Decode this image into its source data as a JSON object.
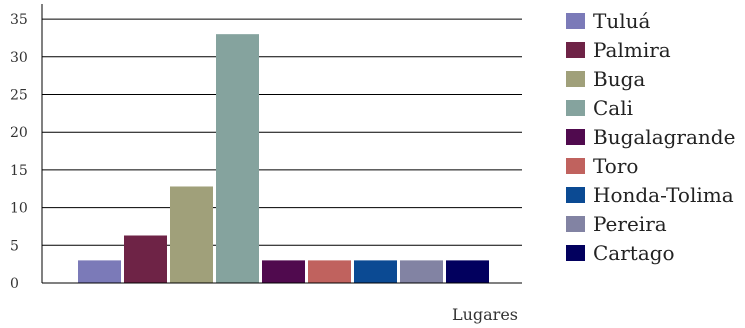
{
  "chart_data": {
    "type": "bar",
    "title": "",
    "xlabel": "Lugares",
    "ylabel": "",
    "ylim": [
      0,
      37
    ],
    "yticks": [
      0,
      5,
      10,
      15,
      20,
      25,
      30,
      35
    ],
    "gridlines": [
      5,
      10,
      15,
      20,
      25,
      30,
      35
    ],
    "legend_position": "right",
    "categories": [
      "Tuluá",
      "Palmira",
      "Buga",
      "Cali",
      "Bugalagrande",
      "Toro",
      "Honda-Tolima",
      "Pereira",
      "Cartago"
    ],
    "values": [
      3,
      6.3,
      12.8,
      33,
      3,
      3,
      3,
      3,
      3
    ],
    "colors": [
      "#7b7ab8",
      "#6e2346",
      "#a0a07a",
      "#85a39e",
      "#500a4e",
      "#c0625e",
      "#0b4a93",
      "#8283a3",
      "#02005e"
    ]
  }
}
